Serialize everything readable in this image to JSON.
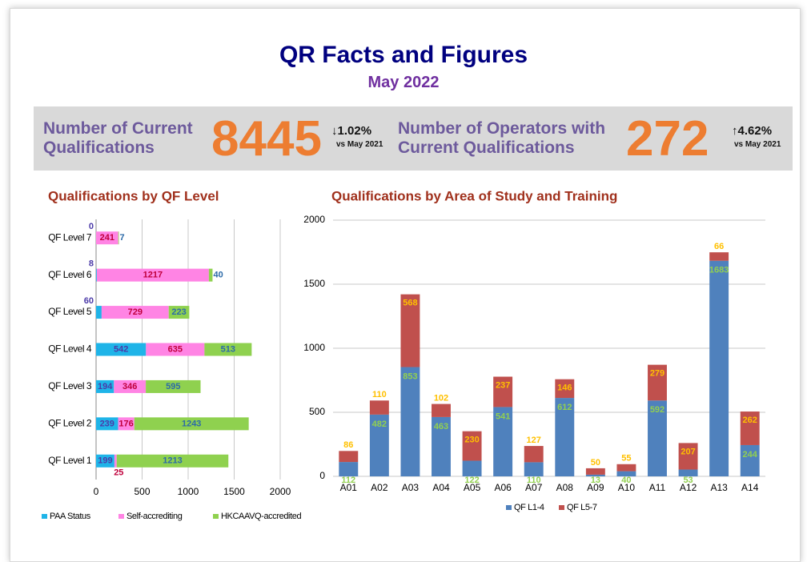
{
  "header": {
    "title": "QR Facts and Figures",
    "subtitle": "May 2022"
  },
  "stats": [
    {
      "label": "Number of Current Qualifications",
      "value": 8445,
      "change": "↓1.02%",
      "compare": "vs May 2021"
    },
    {
      "label": "Number of Operators with Current Qualifications",
      "value": 272,
      "change": "↑4.62%",
      "compare": "vs May 2021"
    }
  ],
  "chart_data": [
    {
      "type": "bar",
      "orientation": "horizontal",
      "stacked": true,
      "title": "Qualifications by QF Level",
      "categories": [
        "QF Level 7",
        "QF Level 6",
        "QF Level 5",
        "QF Level 4",
        "QF Level 3",
        "QF Level 2",
        "QF Level 1"
      ],
      "series": [
        {
          "name": "PAA Status",
          "color": "#1fb4e8",
          "label_color": "#4b3aa8",
          "values": [
            0,
            8,
            60,
            542,
            194,
            239,
            199
          ]
        },
        {
          "name": "Self-accrediting",
          "color": "#ff84e4",
          "label_color": "#c0003c",
          "values": [
            241,
            1217,
            729,
            635,
            346,
            176,
            25
          ]
        },
        {
          "name": "HKCAAVQ-accredited",
          "color": "#8fd14f",
          "label_color": "#2c6aa8",
          "values": [
            7,
            40,
            223,
            513,
            595,
            1243,
            1213
          ]
        }
      ],
      "xlim": [
        0,
        2000
      ],
      "xticks": [
        0,
        500,
        1000,
        1500,
        2000
      ],
      "grid": true,
      "legend": "bottom"
    },
    {
      "type": "bar",
      "orientation": "vertical",
      "stacked": true,
      "title": "Qualifications by Area of Study and Training",
      "categories": [
        "A01",
        "A02",
        "A03",
        "A04",
        "A05",
        "A06",
        "A07",
        "A08",
        "A09",
        "A10",
        "A11",
        "A12",
        "A13",
        "A14"
      ],
      "series": [
        {
          "name": "QF L1-4",
          "color": "#4f81bd",
          "label_color": "#92d050",
          "values": [
            112,
            482,
            853,
            463,
            122,
            541,
            110,
            612,
            13,
            40,
            592,
            53,
            1683,
            244
          ]
        },
        {
          "name": "QF L5-7",
          "color": "#c0504d",
          "label_color": "#ffc000",
          "values": [
            86,
            110,
            568,
            102,
            230,
            237,
            127,
            146,
            50,
            55,
            279,
            207,
            66,
            262
          ]
        }
      ],
      "ylim": [
        0,
        2000
      ],
      "yticks": [
        0,
        500,
        1000,
        1500,
        2000
      ],
      "grid": true,
      "legend": "bottom"
    }
  ]
}
